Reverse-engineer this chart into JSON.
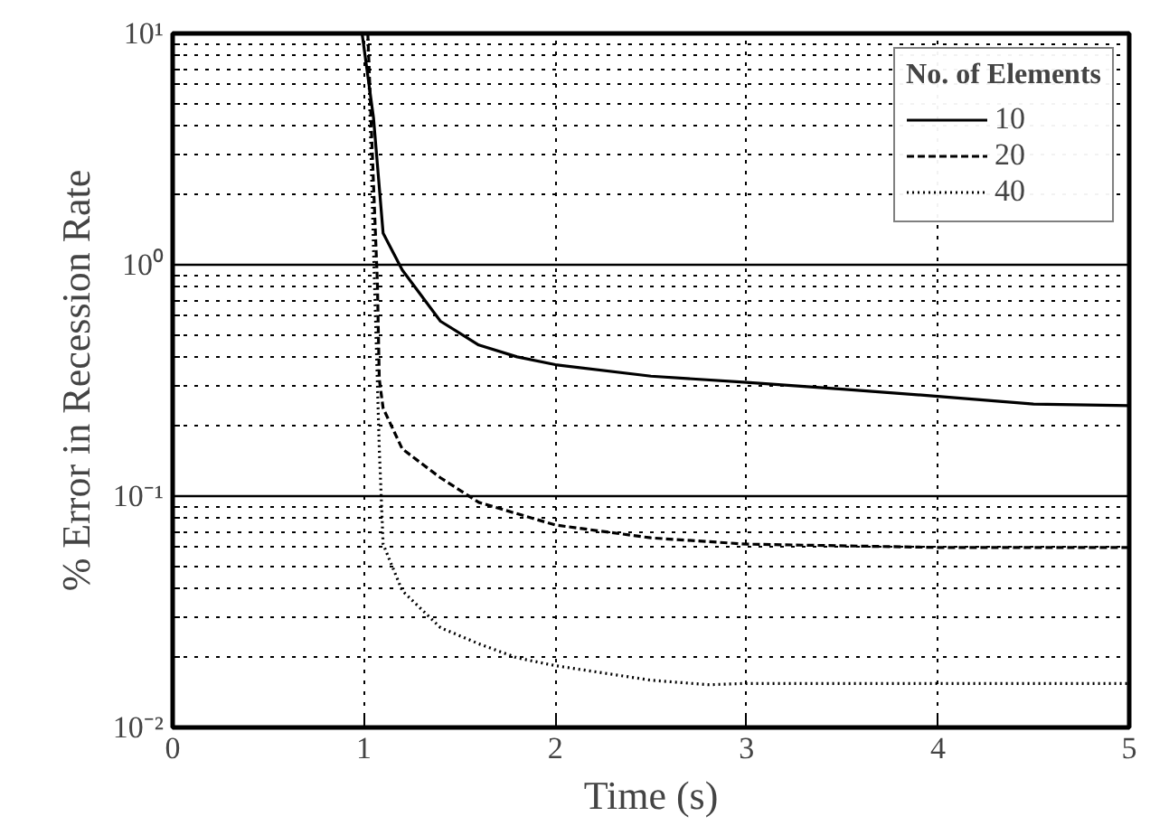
{
  "chart_data": {
    "type": "line",
    "xlabel": "Time (s)",
    "ylabel": "% Error in Recession Rate",
    "legend_title": "No. of Elements",
    "log": "y",
    "grid": true,
    "legend": "top right",
    "xlim": [
      0,
      5
    ],
    "xticks": [
      0,
      1,
      2,
      3,
      4,
      5
    ],
    "ylim": [
      0.01,
      10
    ],
    "yticks": [
      {
        "value": 10,
        "label": "10¹"
      },
      {
        "value": 1,
        "label": "10⁰"
      },
      {
        "value": 0.1,
        "label": "10⁻¹"
      },
      {
        "value": 0.01,
        "label": "10⁻²"
      }
    ],
    "series": [
      {
        "name": "10",
        "color": "#000000",
        "line_style": "solid",
        "x": [
          0.99,
          1.05,
          1.1,
          1.2,
          1.4,
          1.6,
          1.8,
          2,
          2.5,
          3,
          3.5,
          4,
          4.5,
          5
        ],
        "values": [
          10,
          4.3,
          1.37,
          0.95,
          0.57,
          0.45,
          0.4,
          0.37,
          0.33,
          0.31,
          0.29,
          0.27,
          0.25,
          0.246
        ]
      },
      {
        "name": "20",
        "color": "#000000",
        "line_style": "dashed",
        "x": [
          1.02,
          1.05,
          1.07,
          1.08,
          1.1,
          1.2,
          1.4,
          1.6,
          2,
          2.5,
          3,
          4,
          5
        ],
        "values": [
          10,
          2.2,
          0.84,
          0.32,
          0.24,
          0.16,
          0.12,
          0.094,
          0.075,
          0.066,
          0.062,
          0.06,
          0.06
        ]
      },
      {
        "name": "40",
        "color": "#000000",
        "line_style": "dotted",
        "x": [
          1.02,
          1.05,
          1.08,
          1.1,
          1.2,
          1.4,
          1.6,
          1.8,
          2,
          2.5,
          2.8,
          3,
          4,
          5
        ],
        "values": [
          10,
          1.16,
          0.16,
          0.062,
          0.039,
          0.027,
          0.023,
          0.02,
          0.0185,
          0.016,
          0.0153,
          0.0155,
          0.0155,
          0.0155
        ]
      }
    ]
  }
}
